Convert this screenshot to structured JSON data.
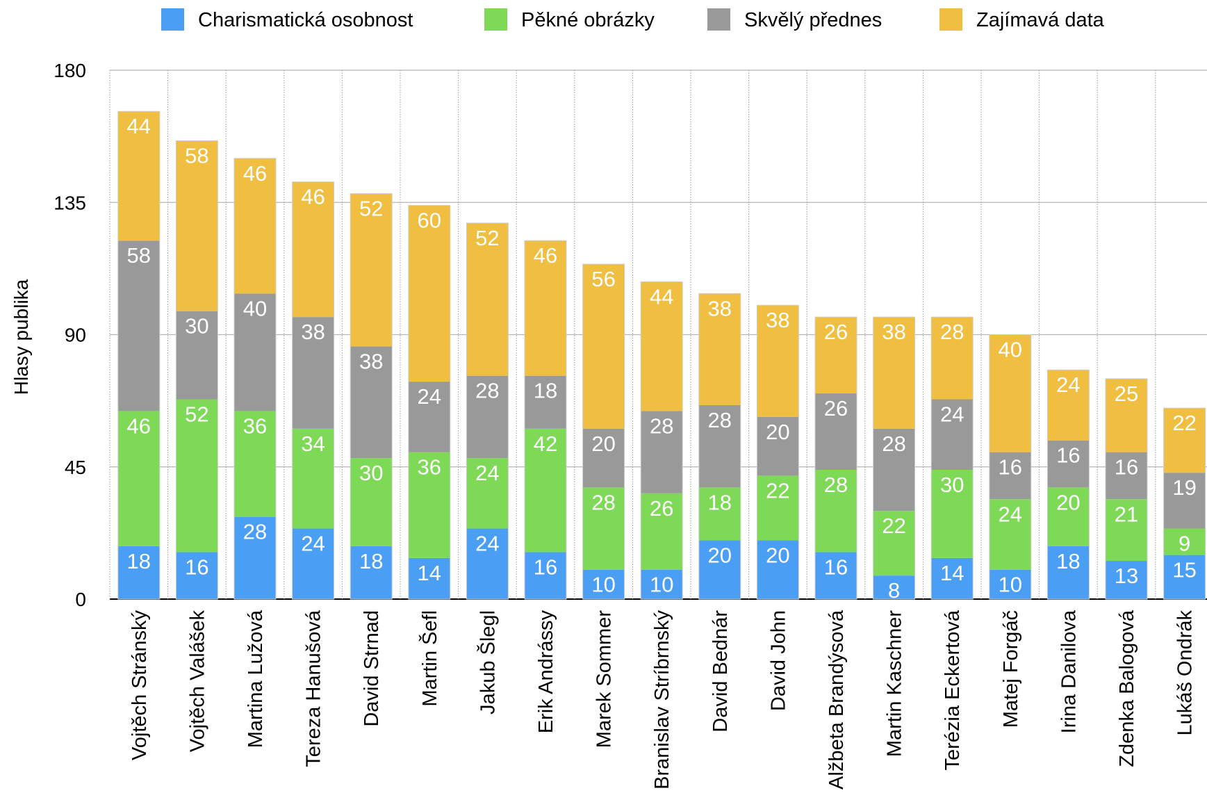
{
  "chart_data": {
    "type": "bar",
    "stacked": true,
    "ylabel": "Hlasy publika",
    "ylim": [
      0,
      180
    ],
    "yticks": [
      "0",
      "45",
      "90",
      "135",
      "180"
    ],
    "grid": true,
    "legend_position": "top",
    "categories": [
      "Vojtěch Stránský",
      "Vojtěch Valášek",
      "Martina Lužová",
      "Tereza Hanušová",
      "David Strnad",
      "Martin Šefl",
      "Jakub Šlegl",
      "Erik Andrássy",
      "Marek Sommer",
      "Branislav Stríbrnský",
      "David Bednár",
      "David John",
      "Alžbeta Brandýsová",
      "Martin Kaschner",
      "Terézia Eckertová",
      "Matej Forgáč",
      "Irina Danilova",
      "Zdenka Balogová",
      "Lukáš Ondrák"
    ],
    "series": [
      {
        "name": "Charismatická osobnost",
        "color": "#4a9ff5",
        "values": [
          18,
          16,
          28,
          24,
          18,
          14,
          24,
          16,
          10,
          10,
          20,
          20,
          16,
          8,
          14,
          10,
          18,
          13,
          15
        ]
      },
      {
        "name": "Pěkné obrázky",
        "color": "#7ed957",
        "values": [
          46,
          52,
          36,
          34,
          30,
          36,
          24,
          42,
          28,
          26,
          18,
          22,
          28,
          22,
          30,
          24,
          20,
          21,
          9
        ]
      },
      {
        "name": "Skvělý přednes",
        "color": "#999999",
        "values": [
          58,
          30,
          40,
          38,
          38,
          24,
          28,
          18,
          20,
          28,
          28,
          20,
          26,
          28,
          24,
          16,
          16,
          16,
          19
        ]
      },
      {
        "name": "Zajímavá data",
        "color": "#f0be41",
        "values": [
          44,
          58,
          46,
          46,
          52,
          60,
          52,
          46,
          56,
          44,
          38,
          38,
          26,
          38,
          28,
          40,
          24,
          25,
          22
        ]
      }
    ]
  }
}
